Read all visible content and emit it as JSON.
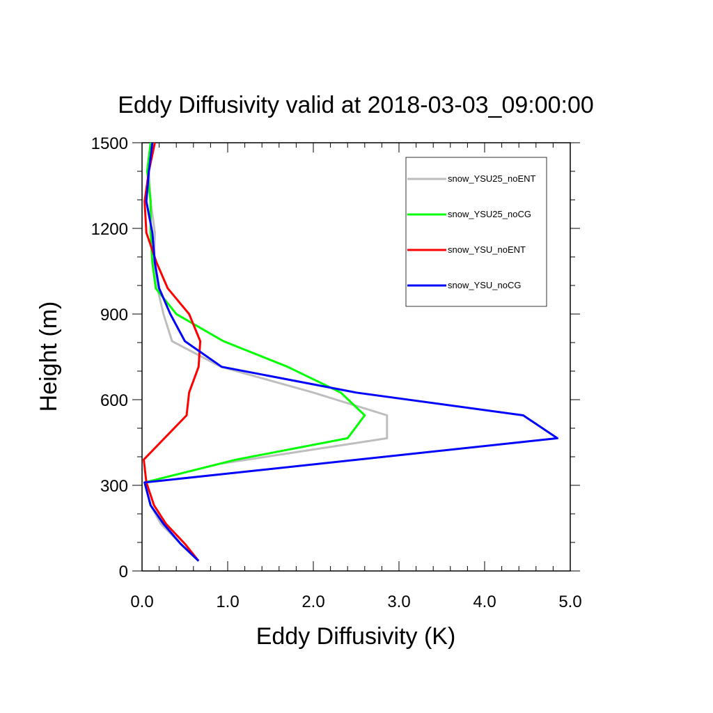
{
  "chart_data": {
    "type": "line",
    "title": "Eddy Diffusivity valid at 2018-03-03_09:00:00",
    "xlabel": "Eddy Diffusivity (K)",
    "ylabel": "Height (m)",
    "xlim": [
      0,
      5
    ],
    "ylim": [
      0,
      1500
    ],
    "xticks": [
      0,
      1,
      2,
      3,
      4,
      5
    ],
    "xtick_labels": [
      "0.0",
      "1.0",
      "2.0",
      "3.0",
      "4.0",
      "5.0"
    ],
    "yticks": [
      0,
      300,
      600,
      900,
      1200,
      1500
    ],
    "ytick_labels": [
      "0",
      "300",
      "600",
      "900",
      "1200",
      "1500"
    ],
    "x_minor_step": 0.2,
    "y_minor_step": 100,
    "grid": false,
    "legend_position": "top-right",
    "series": [
      {
        "name": "snow_YSU25_noENT",
        "color": "#bebebe",
        "points": [
          [
            0.66,
            35
          ],
          [
            0.45,
            95
          ],
          [
            0.22,
            165
          ],
          [
            0.1,
            230
          ],
          [
            0.03,
            310
          ],
          [
            0.9,
            375
          ],
          [
            2.86,
            465
          ],
          [
            2.86,
            545
          ],
          [
            2.0,
            625
          ],
          [
            0.92,
            715
          ],
          [
            0.35,
            805
          ],
          [
            0.25,
            900
          ],
          [
            0.18,
            990
          ],
          [
            0.14,
            1080
          ],
          [
            0.15,
            1185
          ],
          [
            0.1,
            1295
          ],
          [
            0.08,
            1400
          ],
          [
            0.12,
            1500
          ]
        ]
      },
      {
        "name": "snow_YSU25_noCG",
        "color": "#00ff00",
        "points": [
          [
            0.66,
            35
          ],
          [
            0.45,
            95
          ],
          [
            0.25,
            165
          ],
          [
            0.1,
            230
          ],
          [
            0.03,
            310
          ],
          [
            1.1,
            390
          ],
          [
            2.4,
            465
          ],
          [
            2.6,
            545
          ],
          [
            2.32,
            625
          ],
          [
            1.7,
            715
          ],
          [
            0.95,
            805
          ],
          [
            0.4,
            900
          ],
          [
            0.16,
            990
          ],
          [
            0.12,
            1080
          ],
          [
            0.1,
            1185
          ],
          [
            0.1,
            1295
          ],
          [
            0.06,
            1400
          ],
          [
            0.1,
            1500
          ]
        ]
      },
      {
        "name": "snow_YSU_noENT",
        "color": "#ff0000",
        "points": [
          [
            0.66,
            35
          ],
          [
            0.5,
            95
          ],
          [
            0.28,
            165
          ],
          [
            0.14,
            230
          ],
          [
            0.05,
            310
          ],
          [
            0.02,
            390
          ],
          [
            0.52,
            545
          ],
          [
            0.55,
            625
          ],
          [
            0.66,
            715
          ],
          [
            0.68,
            805
          ],
          [
            0.55,
            900
          ],
          [
            0.3,
            990
          ],
          [
            0.17,
            1080
          ],
          [
            0.05,
            1185
          ],
          [
            0.03,
            1295
          ],
          [
            0.08,
            1400
          ],
          [
            0.15,
            1500
          ]
        ]
      },
      {
        "name": "snow_YSU_noCG",
        "color": "#0000ff",
        "points": [
          [
            0.66,
            35
          ],
          [
            0.45,
            95
          ],
          [
            0.25,
            165
          ],
          [
            0.1,
            230
          ],
          [
            0.03,
            310
          ],
          [
            4.85,
            465
          ],
          [
            4.45,
            545
          ],
          [
            2.5,
            625
          ],
          [
            0.93,
            715
          ],
          [
            0.5,
            805
          ],
          [
            0.33,
            900
          ],
          [
            0.2,
            990
          ],
          [
            0.15,
            1080
          ],
          [
            0.12,
            1185
          ],
          [
            0.05,
            1295
          ],
          [
            0.08,
            1400
          ],
          [
            0.12,
            1500
          ]
        ]
      }
    ]
  }
}
